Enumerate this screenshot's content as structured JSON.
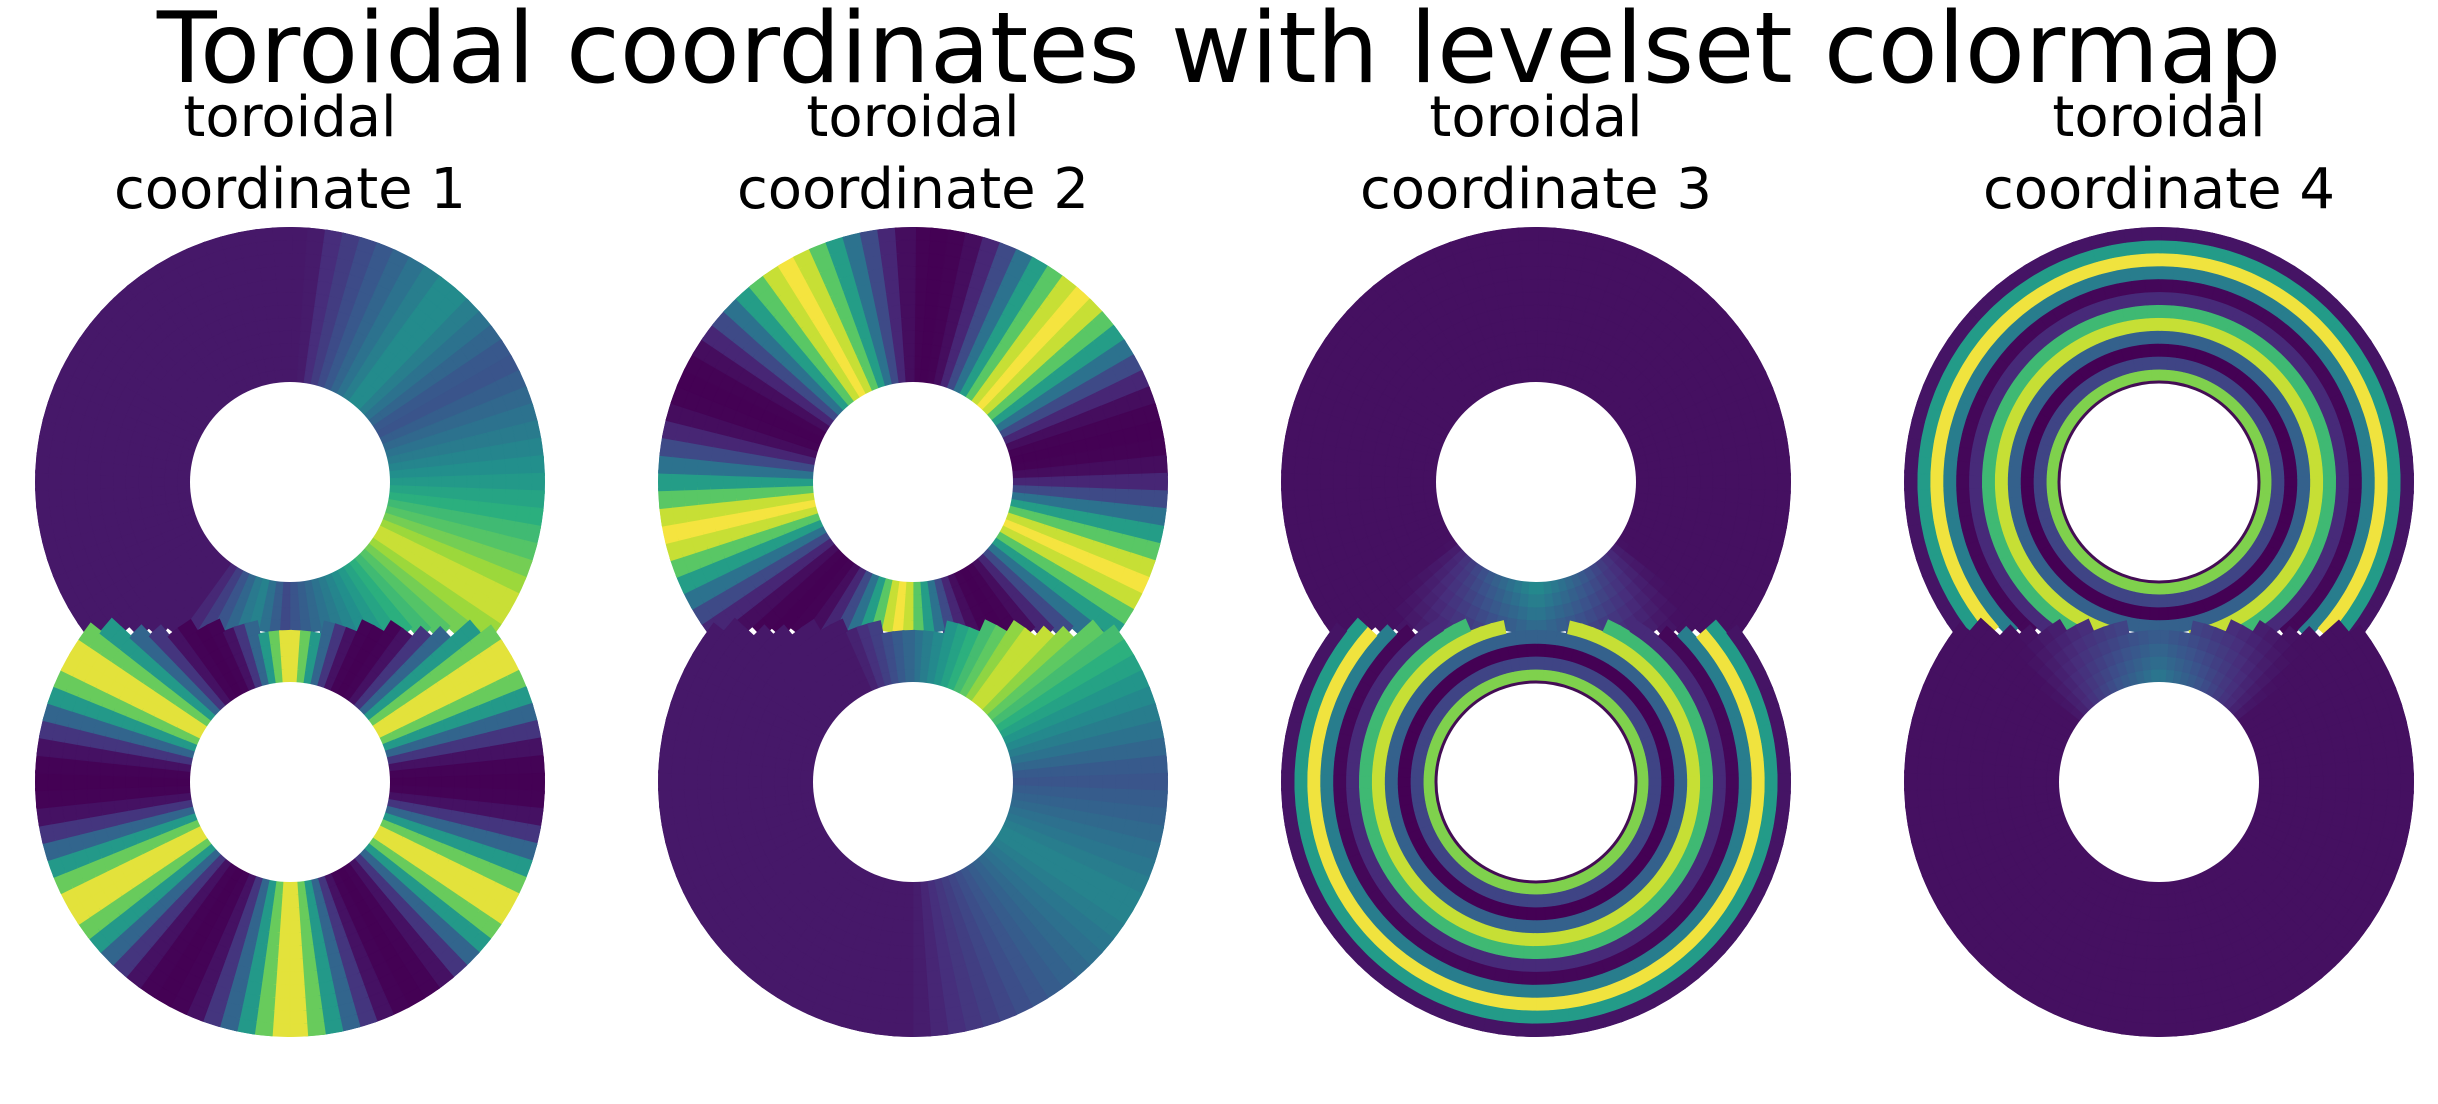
{
  "figure": {
    "title": "Toroidal coordinates with levelset colormap"
  },
  "chart_data": [
    {
      "type": "heatmap",
      "title_line1": "toroidal",
      "title_line2": "coordinate 1",
      "colormap": "viridis-levelset",
      "axes": "off",
      "description_hidden": "angular bands: few around upper hole, six around lower hole"
    },
    {
      "type": "heatmap",
      "title_line1": "toroidal",
      "title_line2": "coordinate 2",
      "colormap": "viridis-levelset",
      "axes": "off"
    },
    {
      "type": "heatmap",
      "title_line1": "toroidal",
      "title_line2": "coordinate 3",
      "colormap": "viridis-levelset",
      "axes": "off"
    },
    {
      "type": "heatmap",
      "title_line1": "toroidal",
      "title_line2": "coordinate 4",
      "colormap": "viridis-levelset",
      "axes": "off"
    }
  ],
  "colors": {
    "dark": "#440d54",
    "mid": "#2a788e",
    "teal": "#21a585",
    "bright": "#f1e445",
    "background": "#ffffff"
  }
}
